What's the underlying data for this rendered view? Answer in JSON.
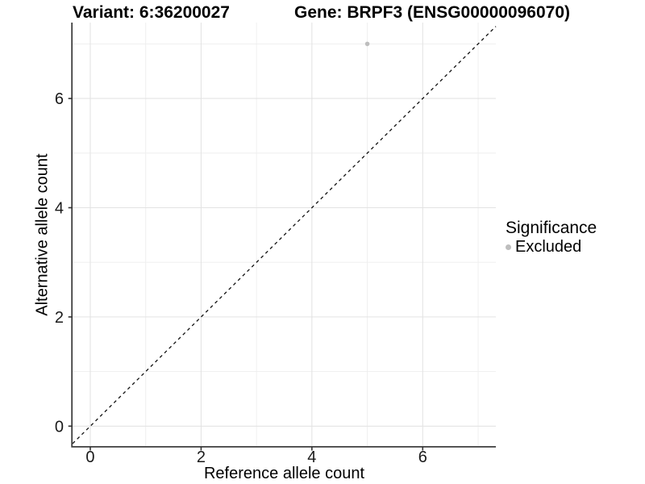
{
  "titles": {
    "variant": "Variant: 6:36200027",
    "gene": "Gene: BRPF3 (ENSG00000096070)"
  },
  "chart_data": {
    "type": "scatter",
    "title": "Variant: 6:36200027   Gene: BRPF3 (ENSG00000096070)",
    "xlabel": "Reference allele count",
    "ylabel": "Alternative allele count",
    "xlim": [
      -0.32,
      7.32
    ],
    "ylim": [
      -0.38,
      7.39
    ],
    "x_major_ticks": [
      0,
      2,
      4,
      6
    ],
    "y_major_ticks": [
      0,
      2,
      4,
      6
    ],
    "x_minor_gridlines": [
      1,
      3,
      5,
      7
    ],
    "y_minor_gridlines": [
      1,
      3,
      5,
      7
    ],
    "grid": true,
    "points": [
      {
        "x": 5,
        "y": 7,
        "series": "Excluded"
      }
    ],
    "reference_line": {
      "label": "identity (y = x)",
      "slope": 1,
      "intercept": 0,
      "style": "dashed",
      "color": "#111111"
    },
    "legend": {
      "title": "Significance",
      "position": "right",
      "items": [
        {
          "label": "Excluded",
          "color": "#bebebe",
          "marker": "circle"
        }
      ]
    },
    "colors": {
      "grid_major": "#e3e3e3",
      "grid_minor": "#eeeeee",
      "axis_line": "#3f3f3f",
      "tick_mark": "#333333",
      "point_default": "#bebebe",
      "background": "#ffffff"
    }
  }
}
